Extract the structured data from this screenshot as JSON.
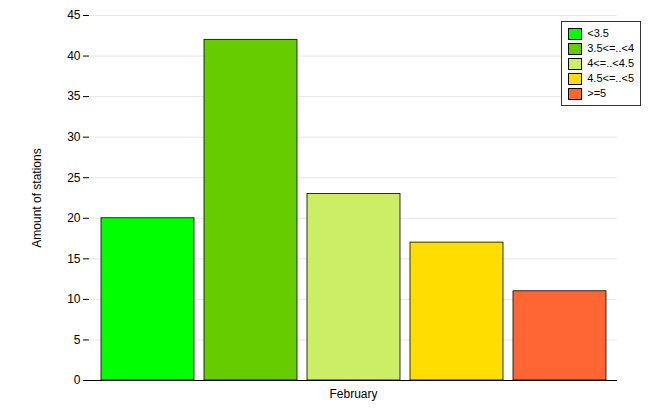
{
  "chart_data": {
    "type": "bar",
    "categories": [
      "February"
    ],
    "series": [
      {
        "name": "<3.5",
        "color": "#00ff00",
        "values": [
          20
        ]
      },
      {
        "name": "3.5<=..<4",
        "color": "#66cc00",
        "values": [
          42
        ]
      },
      {
        "name": "4<=..<4.5",
        "color": "#ccee66",
        "values": [
          23
        ]
      },
      {
        "name": "4.5<=..<5",
        "color": "#ffdd00",
        "values": [
          17
        ]
      },
      {
        "name": ">=5",
        "color": "#ff6633",
        "values": [
          11
        ]
      }
    ],
    "ylabel": "Amount of stations",
    "ylim": [
      0,
      45
    ],
    "yticks": [
      0,
      5,
      10,
      15,
      20,
      25,
      30,
      35,
      40,
      45
    ],
    "grid": true,
    "legend": "upper right"
  }
}
